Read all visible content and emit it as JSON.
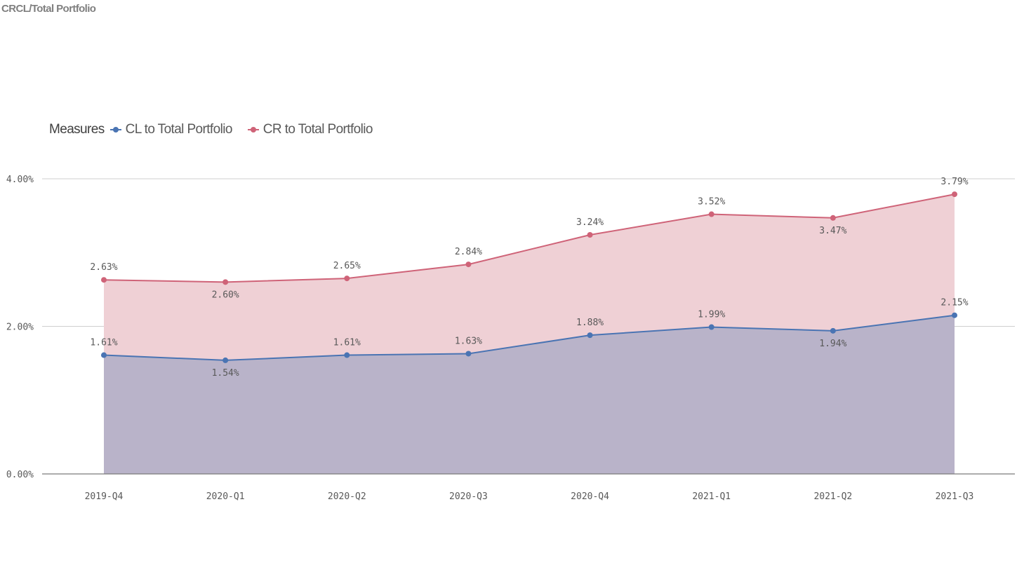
{
  "title": "CRCL/Total Portfolio",
  "legend": {
    "title": "Measures",
    "items": [
      {
        "label": "CL to Total Portfolio",
        "color": "#4a74b3"
      },
      {
        "label": "CR to Total Portfolio",
        "color": "#cf6378"
      }
    ]
  },
  "chart_data": {
    "type": "area",
    "categories": [
      "2019-Q4",
      "2020-Q1",
      "2020-Q2",
      "2020-Q3",
      "2020-Q4",
      "2021-Q1",
      "2021-Q2",
      "2021-Q3"
    ],
    "series": [
      {
        "name": "CL to Total Portfolio",
        "color": "#4a74b3",
        "fill": "#b9b3c9",
        "values": [
          1.61,
          1.54,
          1.61,
          1.63,
          1.88,
          1.99,
          1.94,
          2.15
        ],
        "labels": [
          "1.61%",
          "1.54%",
          "1.61%",
          "1.63%",
          "1.88%",
          "1.99%",
          "1.94%",
          "2.15%"
        ],
        "label_position": [
          "above",
          "below",
          "above",
          "above",
          "above",
          "above",
          "below",
          "above"
        ]
      },
      {
        "name": "CR to Total Portfolio",
        "color": "#cf6378",
        "fill": "#efd0d5",
        "values": [
          2.63,
          2.6,
          2.65,
          2.84,
          3.24,
          3.52,
          3.47,
          3.79
        ],
        "labels": [
          "2.63%",
          "2.60%",
          "2.65%",
          "2.84%",
          "3.24%",
          "3.52%",
          "3.47%",
          "3.79%"
        ],
        "label_position": [
          "above",
          "below",
          "above",
          "above",
          "above",
          "above",
          "below",
          "above"
        ]
      }
    ],
    "ylim": [
      0,
      4
    ],
    "yticks": [
      0,
      2,
      4
    ],
    "ytick_labels": [
      "0.00%",
      "2.00%",
      "4.00%"
    ],
    "grid": true,
    "legend_position": "top-left"
  }
}
